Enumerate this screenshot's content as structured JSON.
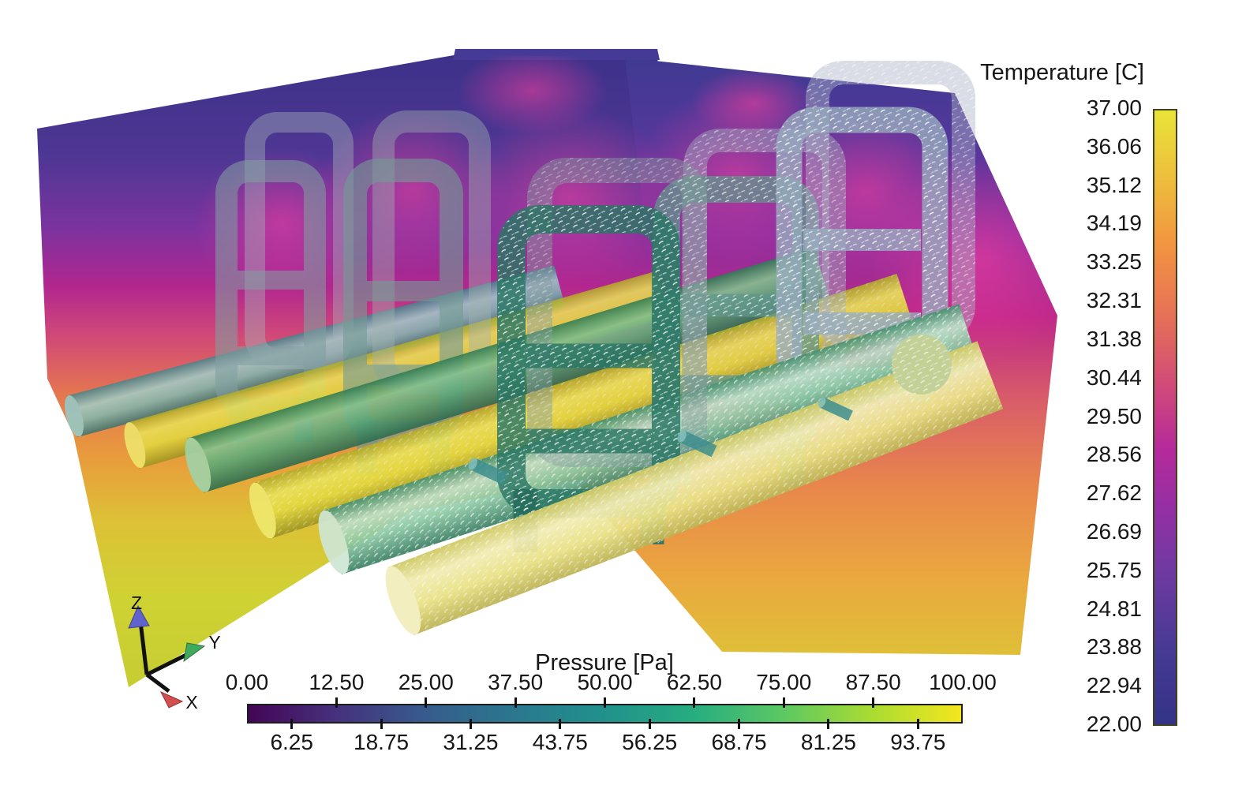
{
  "viewport": {
    "background_color": "#ffffff",
    "description": "3D CFD render: five ladder-shaped micro-vessel graft structures joined to parallel horizontal vessels, flow glyphs on front structures, two temperature slice planes behind"
  },
  "axes_widget": {
    "x_label": "X",
    "y_label": "Y",
    "z_label": "Z",
    "x_color": "#d24f4f",
    "y_color": "#3faa5c",
    "z_color": "#6163cd"
  },
  "temperature_legend": {
    "title": "Temperature [C]",
    "tick_labels": [
      "37.00",
      "36.06",
      "35.12",
      "34.19",
      "33.25",
      "32.31",
      "31.38",
      "30.44",
      "29.50",
      "28.56",
      "27.62",
      "26.69",
      "25.75",
      "24.81",
      "23.88",
      "22.94",
      "22.00"
    ],
    "colormap_stops": [
      [
        0.0,
        "#333387"
      ],
      [
        0.12,
        "#463a94"
      ],
      [
        0.25,
        "#6f3aa2"
      ],
      [
        0.35,
        "#942fa4"
      ],
      [
        0.45,
        "#b62a9b"
      ],
      [
        0.55,
        "#d14a79"
      ],
      [
        0.66,
        "#e56f58"
      ],
      [
        0.78,
        "#f29440"
      ],
      [
        0.9,
        "#edc23b"
      ],
      [
        1.0,
        "#e9e337"
      ]
    ]
  },
  "pressure_legend": {
    "title": "Pressure [Pa]",
    "top_tick_labels": [
      "0.00",
      "12.50",
      "25.00",
      "37.50",
      "50.00",
      "62.50",
      "75.00",
      "87.50",
      "100.00"
    ],
    "bottom_tick_labels": [
      "6.25",
      "18.75",
      "31.25",
      "43.75",
      "56.25",
      "68.75",
      "81.25",
      "93.75"
    ],
    "colormap_stops": [
      [
        0.0,
        "#440556"
      ],
      [
        0.125,
        "#46327e"
      ],
      [
        0.25,
        "#365c8d"
      ],
      [
        0.375,
        "#2a788e"
      ],
      [
        0.5,
        "#21918c"
      ],
      [
        0.625,
        "#27ad81"
      ],
      [
        0.75,
        "#5cc863"
      ],
      [
        0.875,
        "#aadc32"
      ],
      [
        1.0,
        "#f4e61e"
      ]
    ]
  },
  "chart_data": [
    {
      "type": "heatmap",
      "title": "Temperature [C]",
      "legend_position": "right",
      "colorbar_orientation": "vertical",
      "range": [
        22.0,
        37.0
      ],
      "tick_values": [
        37.0,
        36.06,
        35.12,
        34.19,
        33.25,
        32.31,
        31.38,
        30.44,
        29.5,
        28.56,
        27.62,
        26.69,
        25.75,
        24.81,
        23.88,
        22.94,
        22.0
      ],
      "colormap": "plasma-like (dark indigo at 22.00 through magenta and orange to yellow at 37.00)"
    },
    {
      "type": "heatmap",
      "title": "Pressure [Pa]",
      "legend_position": "bottom",
      "colorbar_orientation": "horizontal",
      "range": [
        0.0,
        100.0
      ],
      "tick_values": [
        0.0,
        6.25,
        12.5,
        18.75,
        25.0,
        31.25,
        37.5,
        43.75,
        50.0,
        56.25,
        62.5,
        68.75,
        75.0,
        81.25,
        87.5,
        93.75,
        100.0
      ],
      "colormap": "viridis (dark purple at 0.00 through teal and green to yellow at 100.00)"
    }
  ]
}
